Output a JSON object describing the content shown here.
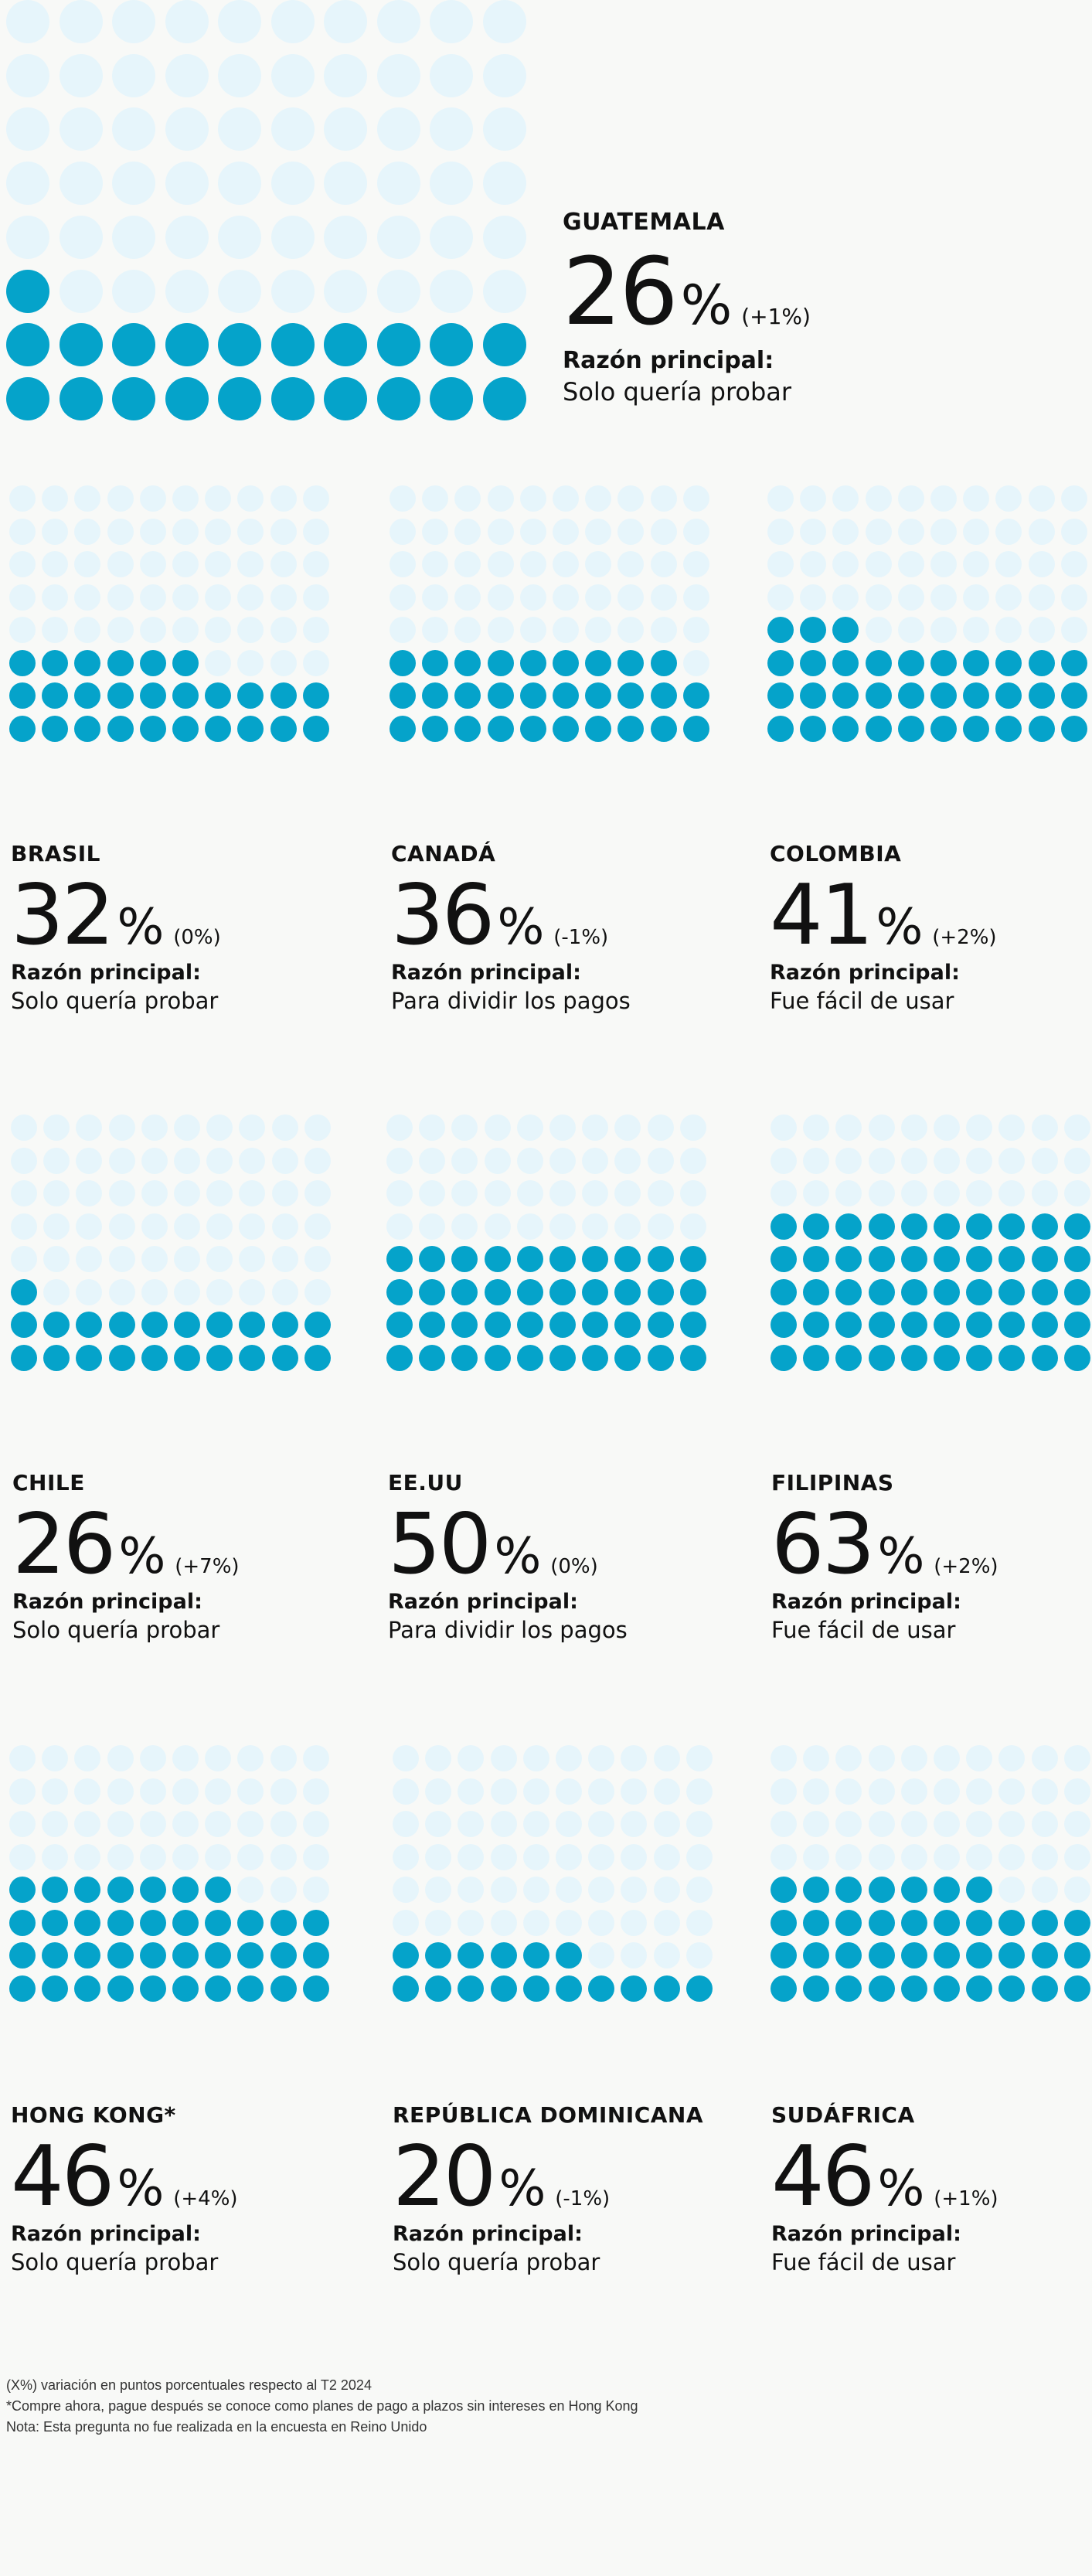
{
  "chart_data": {
    "type": "waffle",
    "grid": "10x8 dots per country, one dot ≈ 1.25%",
    "colors": {
      "filled": "#05a3ca",
      "empty": "#e6f5fb"
    },
    "countries": [
      {
        "name": "GUATEMALA",
        "value": 26,
        "change": "(+1%)",
        "reason_label": "Razón principal:",
        "reason": "Solo quería probar"
      },
      {
        "name": "BRASIL",
        "value": 32,
        "change": "(0%)",
        "reason_label": "Razón principal:",
        "reason": "Solo quería probar"
      },
      {
        "name": "CANADÁ",
        "value": 36,
        "change": "(-1%)",
        "reason_label": "Razón principal:",
        "reason": "Para dividir los pagos"
      },
      {
        "name": "COLOMBIA",
        "value": 41,
        "change": "(+2%)",
        "reason_label": "Razón principal:",
        "reason": "Fue fácil de usar"
      },
      {
        "name": "CHILE",
        "value": 26,
        "change": "(+7%)",
        "reason_label": "Razón principal:",
        "reason": "Solo quería probar"
      },
      {
        "name": "EE.UU",
        "value": 50,
        "change": "(0%)",
        "reason_label": "Razón principal:",
        "reason": "Para dividir los pagos"
      },
      {
        "name": "FILIPINAS",
        "value": 63,
        "change": "(+2%)",
        "reason_label": "Razón principal:",
        "reason": "Fue fácil de usar"
      },
      {
        "name": "HONG KONG*",
        "value": 46,
        "change": "(+4%)",
        "reason_label": "Razón principal:",
        "reason": "Solo quería probar"
      },
      {
        "name": "REPÚBLICA DOMINICANA",
        "value": 20,
        "change": "(-1%)",
        "reason_label": "Razón principal:",
        "reason": "Solo quería probar"
      },
      {
        "name": "SUDÁFRICA",
        "value": 46,
        "change": "(+1%)",
        "reason_label": "Razón principal:",
        "reason": "Fue fácil de usar"
      }
    ]
  },
  "footnotes": [
    "(X%) variación en puntos porcentuales respecto al T2 2024",
    "*Compre ahora, pague después se conoce como planes de pago a plazos sin intereses en Hong Kong",
    "Nota: Esta pregunta no fue realizada en la encuesta en Reino Unido"
  ]
}
